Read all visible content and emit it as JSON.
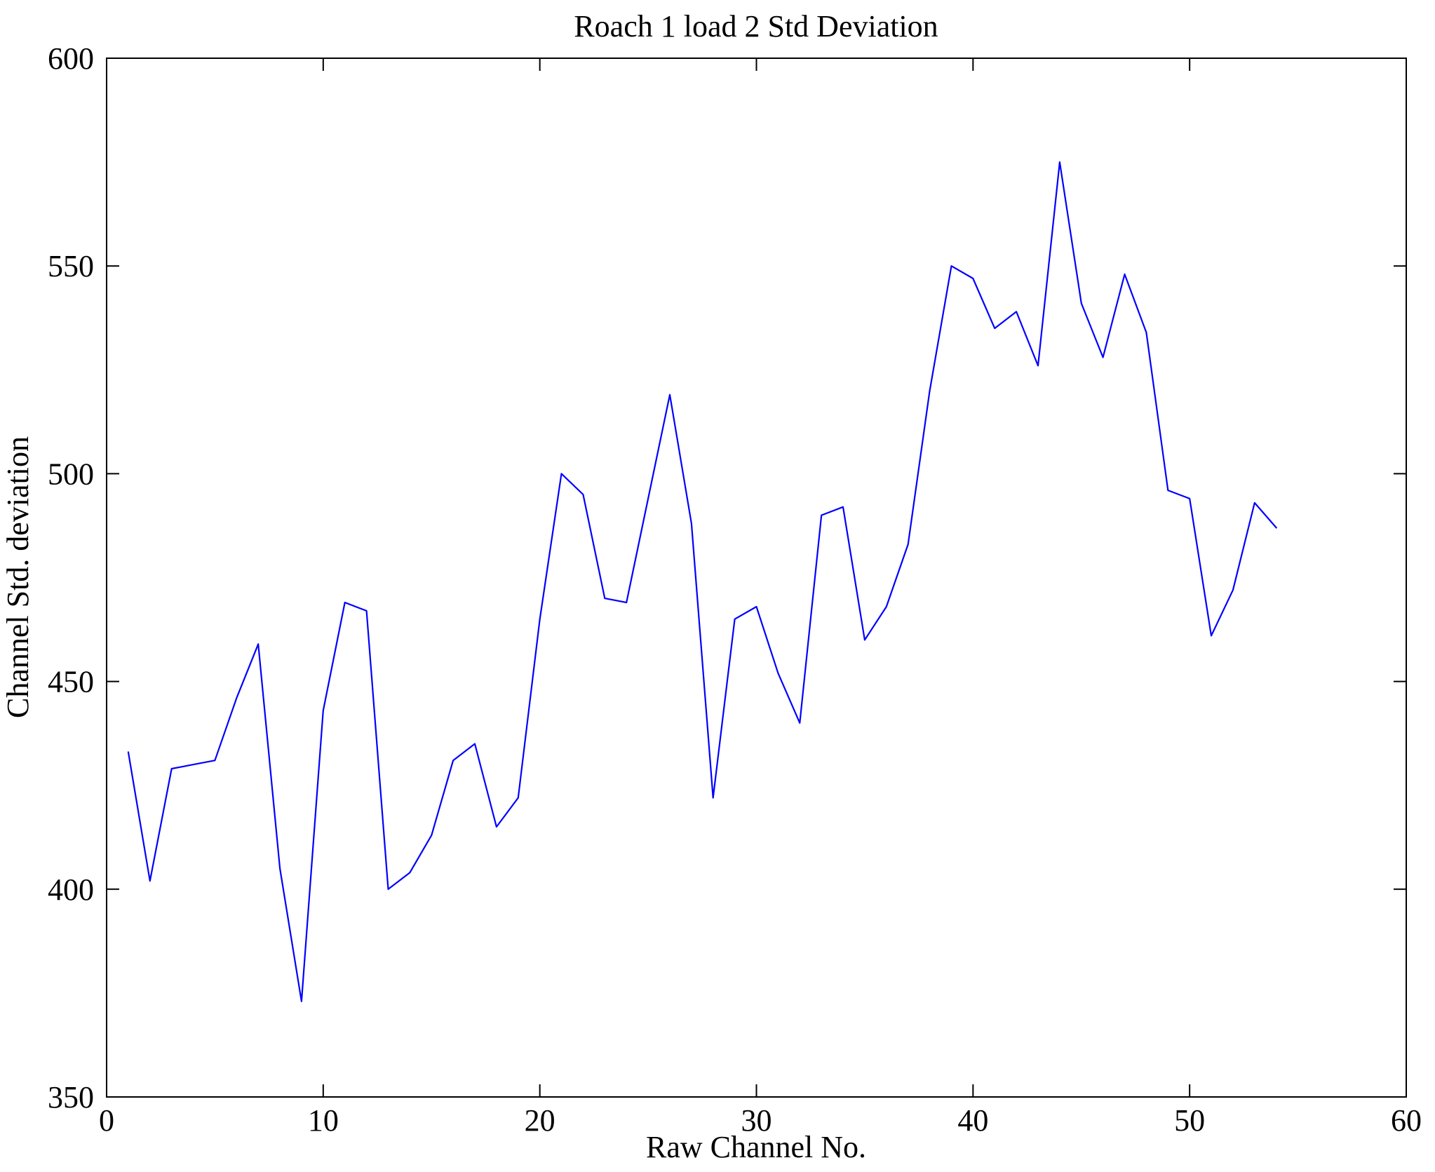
{
  "chart_data": {
    "type": "line",
    "title": "Roach 1 load 2 Std Deviation",
    "xlabel": "Raw Channel No.",
    "ylabel": "Channel Std. deviation",
    "xlim": [
      0,
      60
    ],
    "ylim": [
      350,
      600
    ],
    "xticks": [
      0,
      10,
      20,
      30,
      40,
      50,
      60
    ],
    "yticks": [
      350,
      400,
      450,
      500,
      550,
      600
    ],
    "grid": false,
    "legend": "none",
    "line_color": "#0000ff",
    "axis_color": "#000000",
    "x": [
      1,
      2,
      3,
      4,
      5,
      6,
      7,
      8,
      9,
      10,
      11,
      12,
      13,
      14,
      15,
      16,
      17,
      18,
      19,
      20,
      21,
      22,
      23,
      24,
      25,
      26,
      27,
      28,
      29,
      30,
      31,
      32,
      33,
      34,
      35,
      36,
      37,
      38,
      39,
      40,
      41,
      42,
      43,
      44,
      45,
      46,
      47,
      48,
      49,
      50,
      51,
      52,
      53,
      54
    ],
    "y": [
      433,
      402,
      429,
      430,
      431,
      446,
      459,
      405,
      373,
      443,
      469,
      467,
      400,
      404,
      413,
      431,
      435,
      415,
      422,
      465,
      500,
      495,
      470,
      469,
      494,
      519,
      488,
      422,
      465,
      468,
      452,
      440,
      490,
      492,
      460,
      468,
      483,
      520,
      550,
      547,
      535,
      539,
      526,
      575,
      541,
      528,
      548,
      534,
      496,
      494,
      461,
      472,
      493,
      487
    ]
  }
}
